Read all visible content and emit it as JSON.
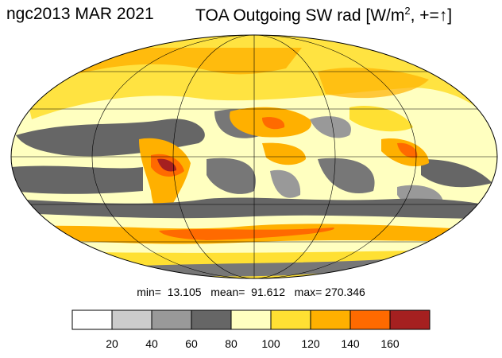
{
  "title": {
    "left": "ngc2013 MAR 2021",
    "right_main": "TOA Outgoing SW rad [W/m",
    "right_sup": "2",
    "right_tail": ", +=↑]"
  },
  "stats": {
    "text": "min=  13.105   mean=  91.612   max= 270.346"
  },
  "colorbar": {
    "colors": [
      "#ffffff",
      "#cccccc",
      "#999999",
      "#666666",
      "#ffffc0",
      "#ffe033",
      "#ffb000",
      "#ff6a00",
      "#a52020"
    ],
    "ticks": [
      "20",
      "40",
      "60",
      "80",
      "100",
      "120",
      "140",
      "160"
    ]
  },
  "map": {
    "projection": "mollweide",
    "ocean_color": "#ffffc0"
  }
}
